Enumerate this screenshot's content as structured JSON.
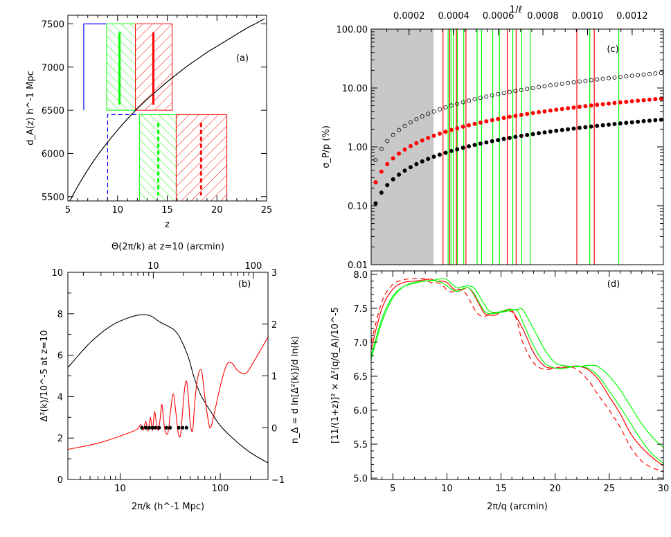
{
  "chart_data": [
    {
      "id": "a",
      "type": "line",
      "panel_label": "(a)",
      "xlabel": "z",
      "ylabel": "d_A(z)    h^-1 Mpc",
      "xlim": [
        5,
        25
      ],
      "ylim": [
        5450,
        7600
      ],
      "x_tick_labels": [
        "5",
        "10",
        "15",
        "20",
        "25"
      ],
      "y_tick_labels": [
        "5500",
        "6000",
        "6500",
        "7000",
        "7500"
      ],
      "curve": {
        "z": [
          5.2,
          6,
          7,
          8,
          9,
          10,
          11,
          12,
          13,
          14,
          15,
          16,
          17,
          18,
          19,
          20,
          21,
          22,
          23,
          24,
          24.8
        ],
        "d_A": [
          5450,
          5620,
          5810,
          5980,
          6130,
          6270,
          6400,
          6520,
          6630,
          6730,
          6830,
          6920,
          7010,
          7090,
          7170,
          7240,
          7310,
          7380,
          7450,
          7510,
          7560
        ]
      },
      "bins_top": [
        {
          "z_min": 6.6,
          "z_max": 8.9,
          "style": "outline",
          "color": "#0000ff"
        },
        {
          "z_min": 8.9,
          "z_max": 11.8,
          "style": "hatch-back",
          "color": "#00ff00",
          "marker_z": 10.2
        },
        {
          "z_min": 11.8,
          "z_max": 15.5,
          "style": "hatch-fwd",
          "color": "#ff0000",
          "marker_z": 13.6
        }
      ],
      "bins_bottom": [
        {
          "z_min": 9.0,
          "z_max": 12.2,
          "style": "dashed-outline",
          "color": "#0000ff"
        },
        {
          "z_min": 12.2,
          "z_max": 15.9,
          "style": "hatch-back",
          "color": "#00ff00",
          "marker_z": 14.1
        },
        {
          "z_min": 15.9,
          "z_max": 21.0,
          "style": "hatch-fwd",
          "color": "#ff0000",
          "marker_z": 18.4
        }
      ],
      "top_bins_dA_range": [
        6500,
        7500
      ],
      "bottom_bins_dA_range": [
        5450,
        6450
      ]
    },
    {
      "id": "b",
      "type": "line",
      "panel_label": "(b)",
      "xlabel": "2π/k    (h^-1 Mpc)",
      "ylabel": "Δ²(k)/10^-5    at z=10",
      "ylabel_right": "n_Δ = d ln[Δ²(k)]/d ln(k)",
      "top_label": "Θ(2π/k) at z=10   (arcmin)",
      "x_scale": "log",
      "xlim": [
        3,
        300
      ],
      "ylim": [
        0,
        10
      ],
      "right_ylim": [
        -1,
        3
      ],
      "x_tick_labels": [
        "10",
        "100"
      ],
      "top_tick_labels": [
        "10",
        "100"
      ],
      "y_tick_labels": [
        "0",
        "2",
        "4",
        "6",
        "8",
        "10"
      ],
      "right_tick_labels": [
        "−1",
        "0",
        "1",
        "2",
        "3"
      ],
      "series": [
        {
          "axis": "left",
          "color": "#000000",
          "x": [
            3,
            5,
            8,
            12,
            16,
            20,
            25,
            30,
            35,
            40,
            48,
            55,
            65,
            80,
            100,
            140,
            200,
            300
          ],
          "y": [
            5.4,
            6.6,
            7.4,
            7.8,
            7.95,
            7.9,
            7.6,
            7.4,
            7.2,
            6.8,
            5.9,
            4.9,
            4.0,
            3.3,
            2.6,
            1.9,
            1.3,
            0.8
          ]
        },
        {
          "axis": "right",
          "color": "#ff0000",
          "x": [
            3,
            6,
            10,
            13,
            15,
            16,
            17,
            18,
            19,
            20,
            21,
            22,
            23,
            24,
            25,
            26,
            27,
            28,
            30,
            32,
            34,
            36,
            38,
            40,
            42,
            44,
            46,
            48,
            50,
            53,
            56,
            60,
            65,
            70,
            75,
            80,
            90,
            100,
            115,
            130,
            150,
            180,
            220,
            300
          ],
          "y": [
            -0.42,
            -0.3,
            -0.16,
            -0.08,
            -0.02,
            0.06,
            -0.05,
            0.12,
            -0.06,
            0.2,
            -0.05,
            0.3,
            0.1,
            -0.05,
            0.15,
            0.45,
            0.2,
            -0.05,
            -0.1,
            0.35,
            0.65,
            0.3,
            -0.1,
            -0.15,
            0.3,
            0.75,
            0.9,
            0.6,
            0.1,
            -0.05,
            0.55,
            1.0,
            1.1,
            0.6,
            0.2,
            0.0,
            0.4,
            0.8,
            1.2,
            1.25,
            1.1,
            1.05,
            1.3,
            1.75
          ]
        }
      ],
      "points": {
        "axis": "right",
        "color": "#000000",
        "x": [
          16.5,
          18,
          19.5,
          21,
          22.5,
          24.5,
          29,
          31.5,
          38.5,
          42,
          46
        ],
        "y": [
          0,
          0,
          0,
          0,
          0,
          0,
          0,
          0,
          0,
          0,
          0
        ]
      }
    },
    {
      "id": "c",
      "type": "scatter",
      "panel_label": "(c)",
      "xlabel": "",
      "ylabel": "σ_P/p  (%)",
      "top_label": "1/ℓ",
      "y_scale": "log",
      "xlim": [
        3e-05,
        0.00134
      ],
      "ylim": [
        0.01,
        100
      ],
      "top_tick_labels": [
        "0.0002",
        "0.0004",
        "0.0006",
        "0.0008",
        "0.0010",
        "0.0012"
      ],
      "y_tick_labels": [
        "0.01",
        "0.10",
        "1.00",
        "10.00",
        "100.00"
      ],
      "shaded_region": [
        3e-05,
        0.00031
      ],
      "shade_color": "#c8c8c8",
      "series": [
        {
          "name": "open",
          "color": "#000000",
          "marker": "open-circle",
          "y_start": 0.6,
          "y_end": 18
        },
        {
          "name": "red",
          "color": "#ff0000",
          "marker": "filled-circle",
          "y_start": 0.25,
          "y_end": 6.6
        },
        {
          "name": "black",
          "color": "#000000",
          "marker": "filled-circle",
          "y_start": 0.11,
          "y_end": 2.9
        }
      ],
      "n_points": 50,
      "vertical_lines": {
        "red": [
          0.000352,
          0.000382,
          0.000412,
          0.000455,
          0.00064,
          0.00068,
          0.000952,
          0.00103
        ],
        "green": [
          0.000375,
          0.000388,
          0.000398,
          0.000416,
          0.000445,
          0.000505,
          0.000525,
          0.000575,
          0.000605,
          0.000665,
          0.000705,
          0.000743,
          0.00101,
          0.00114
        ]
      }
    },
    {
      "id": "d",
      "type": "line",
      "panel_label": "(d)",
      "xlabel": "2π/q   (arcmin)",
      "ylabel": "[11/(1+z)]² × Δ²(q/d_A)/10^-5",
      "xlim": [
        3,
        30
      ],
      "ylim": [
        4.98,
        8.05
      ],
      "x_tick_labels": [
        "5",
        "10",
        "15",
        "20",
        "25",
        "30"
      ],
      "y_tick_labels": [
        "5.0",
        "5.5",
        "6.0",
        "6.5",
        "7.0",
        "7.5",
        "8.0"
      ],
      "series": [
        {
          "color": "#ff0000",
          "style": "solid",
          "x": [
            3,
            4,
            5,
            6,
            7,
            8,
            8.5,
            9,
            9.5,
            10,
            10.5,
            11,
            11.5,
            12,
            12.5,
            13,
            13.5,
            14,
            14.5,
            15,
            15.5,
            16,
            17,
            18,
            19,
            20,
            21,
            22,
            23,
            24,
            25,
            26,
            27,
            28,
            29,
            30
          ],
          "y": [
            6.9,
            7.5,
            7.78,
            7.88,
            7.9,
            7.92,
            7.93,
            7.9,
            7.9,
            7.88,
            7.8,
            7.75,
            7.78,
            7.8,
            7.7,
            7.55,
            7.42,
            7.4,
            7.4,
            7.45,
            7.47,
            7.47,
            7.2,
            6.85,
            6.65,
            6.62,
            6.63,
            6.65,
            6.6,
            6.45,
            6.2,
            5.95,
            5.65,
            5.45,
            5.3,
            5.18
          ]
        },
        {
          "color": "#ff0000",
          "style": "dashed",
          "x": [
            3,
            4,
            5,
            6,
            7,
            7.5,
            8,
            8.5,
            9,
            9.5,
            10,
            10.5,
            11,
            11.5,
            12,
            12.5,
            13,
            13.5,
            14,
            15,
            16,
            16.5,
            17,
            18,
            19,
            20,
            21,
            22,
            23,
            24,
            25,
            26,
            27,
            28,
            29,
            30
          ],
          "y": [
            7.0,
            7.6,
            7.85,
            7.92,
            7.94,
            7.94,
            7.93,
            7.88,
            7.88,
            7.85,
            7.77,
            7.74,
            7.78,
            7.76,
            7.65,
            7.5,
            7.4,
            7.38,
            7.42,
            7.45,
            7.45,
            7.3,
            7.0,
            6.7,
            6.6,
            6.62,
            6.65,
            6.6,
            6.45,
            6.22,
            6.0,
            5.75,
            5.45,
            5.25,
            5.15,
            5.1
          ]
        },
        {
          "color": "#00ff00",
          "style": "solid",
          "x": [
            3,
            4,
            5,
            6,
            7,
            8,
            9,
            9.5,
            10,
            10.5,
            11,
            11.5,
            12,
            12.5,
            13,
            13.5,
            14,
            15,
            15.5,
            16,
            16.5,
            17,
            18,
            19,
            20,
            21,
            22,
            23,
            23.5,
            24,
            25,
            26,
            27,
            28,
            29,
            30
          ],
          "y": [
            6.8,
            7.35,
            7.68,
            7.82,
            7.87,
            7.9,
            7.92,
            7.94,
            7.92,
            7.85,
            7.8,
            7.82,
            7.83,
            7.8,
            7.68,
            7.55,
            7.45,
            7.45,
            7.48,
            7.48,
            7.48,
            7.48,
            7.2,
            6.9,
            6.7,
            6.65,
            6.64,
            6.66,
            6.66,
            6.64,
            6.5,
            6.3,
            6.05,
            5.8,
            5.6,
            5.45
          ]
        },
        {
          "color": "#00ff00",
          "style": "solid",
          "x": [
            3,
            4,
            5,
            6,
            7,
            8,
            8.5,
            9,
            9.5,
            10,
            10.5,
            11,
            11.5,
            12,
            12.5,
            13,
            13.5,
            14,
            15,
            16,
            16.5,
            17,
            18,
            19,
            20,
            21,
            22,
            23,
            24,
            25,
            26,
            27,
            28,
            29,
            30
          ],
          "y": [
            6.75,
            7.3,
            7.65,
            7.82,
            7.88,
            7.9,
            7.91,
            7.9,
            7.88,
            7.83,
            7.77,
            7.75,
            7.79,
            7.8,
            7.72,
            7.58,
            7.45,
            7.42,
            7.44,
            7.47,
            7.47,
            7.3,
            6.95,
            6.7,
            6.62,
            6.62,
            6.65,
            6.62,
            6.5,
            6.28,
            6.05,
            5.8,
            5.55,
            5.35,
            5.22
          ]
        }
      ]
    }
  ]
}
